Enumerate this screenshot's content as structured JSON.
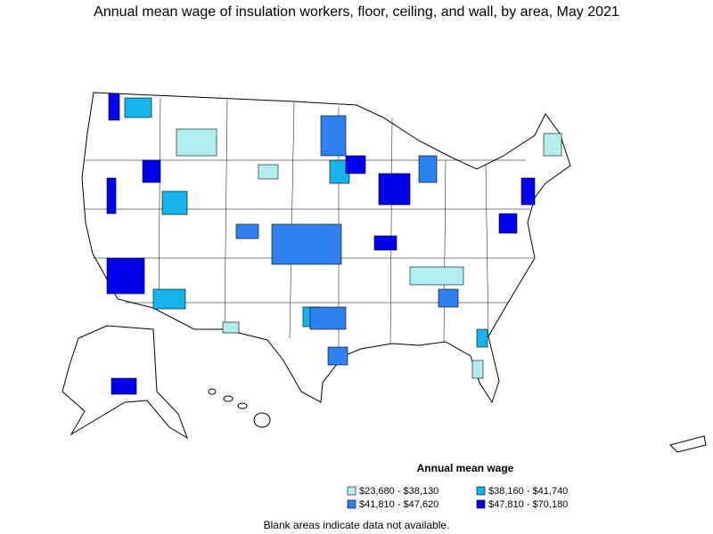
{
  "title": "Annual mean wage of insulation workers, floor, ceiling, and wall, by area, May 2021",
  "legend": {
    "title": "Annual mean wage",
    "items": [
      {
        "label": "$23,680 - $38,130",
        "color": "#b2eeee"
      },
      {
        "label": "$38,160 - $41,740",
        "color": "#16b4ea"
      },
      {
        "label": "$41,810 - $47,620",
        "color": "#2f80f0"
      },
      {
        "label": "$47,810 - $70,180",
        "color": "#0000ee"
      }
    ]
  },
  "note": "Blank areas indicate data not available."
}
